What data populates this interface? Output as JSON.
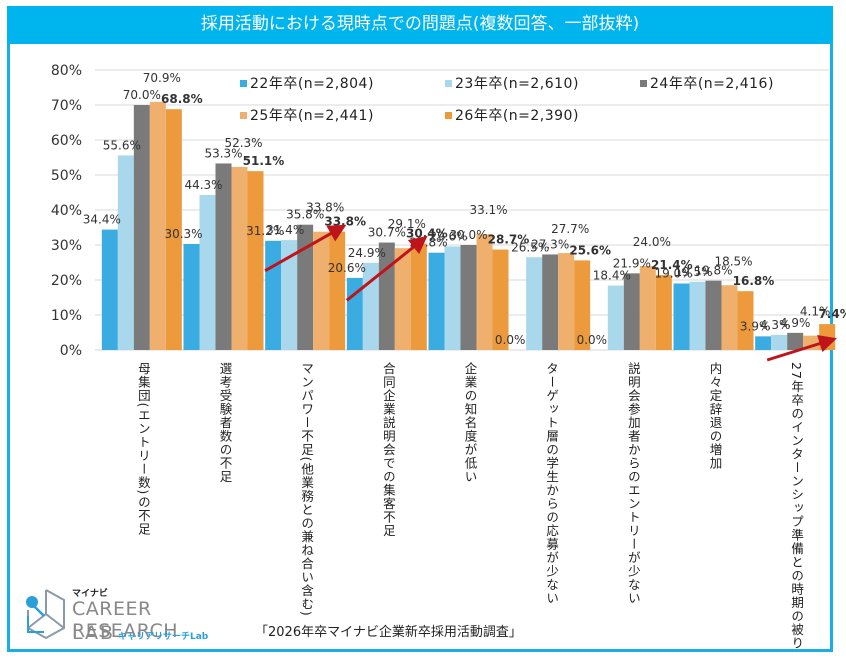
{
  "header": {
    "title": "採用活動における現時点での問題点(複数回答、一部抜粋)"
  },
  "colors": {
    "title_bg": "#00b4ee",
    "frame": "#1aaee6",
    "series": [
      "#3aace2",
      "#a9d8ec",
      "#7a7a7a",
      "#efb06e",
      "#ec9a3c"
    ],
    "arrow": "#c0141b"
  },
  "chart_data": {
    "type": "bar",
    "title": "採用活動における現時点での問題点(複数回答、一部抜粋)",
    "xlabel": "",
    "ylabel": "",
    "ylim": [
      0,
      80
    ],
    "yticks": [
      "0%",
      "10%",
      "20%",
      "30%",
      "40%",
      "50%",
      "60%",
      "70%",
      "80%"
    ],
    "grid": true,
    "legend_position": "top-right",
    "categories": [
      "母集団(エントリー数)の不足",
      "選考受験者数の不足",
      "マンパワー不足(他業務との兼ね合い含む)",
      "合同企業説明会での集客不足",
      "企業の知名度が低い",
      "ターゲット層の学生からの応募が少ない",
      "説明会参加者からのエントリーが少ない",
      "内々定辞退の増加",
      "27年卒のインターンシップ準備との時期の被り"
    ],
    "series": [
      {
        "name": "22年卒(n=2,804)",
        "values": [
          34.4,
          30.3,
          31.2,
          20.6,
          27.8,
          0.0,
          0.0,
          19.0,
          3.9
        ]
      },
      {
        "name": "23年卒(n=2,610)",
        "values": [
          55.6,
          44.3,
          31.4,
          24.9,
          29.6,
          26.5,
          18.4,
          19.5,
          4.3
        ]
      },
      {
        "name": "24年卒(n=2,416)",
        "values": [
          70.0,
          53.3,
          35.8,
          30.7,
          30.0,
          27.3,
          21.9,
          19.8,
          4.9
        ]
      },
      {
        "name": "25年卒(n=2,441)",
        "values": [
          70.9,
          52.3,
          33.8,
          29.1,
          33.1,
          27.7,
          24.0,
          18.5,
          4.1
        ]
      },
      {
        "name": "26年卒(n=2,390)",
        "values": [
          68.8,
          51.1,
          33.8,
          30.4,
          28.7,
          25.6,
          21.4,
          16.8,
          7.4
        ]
      }
    ],
    "data_labels": [
      [
        "34.4%",
        "30.3%",
        "31.2%",
        "20.6%",
        "27.8%",
        "0.0%",
        "0.0%",
        "19.0%",
        "3.9%"
      ],
      [
        "55.6%",
        "44.3%",
        "31.4%",
        "24.9%",
        "29.6%",
        "26.5%",
        "18.4%",
        "19.5%",
        "4.3%"
      ],
      [
        "70.0%",
        "53.3%",
        "35.8%",
        "30.7%",
        "30.0%",
        "27.3%",
        "21.9%",
        "19.8%",
        "4.9%"
      ],
      [
        "70.9%",
        "52.3%",
        "33.8%",
        "29.1%",
        "33.1%",
        "27.7%",
        "24.0%",
        "18.5%",
        "4.1%"
      ],
      [
        "68.8%",
        "51.1%",
        "33.8%",
        "30.4%",
        "28.7%",
        "25.6%",
        "21.4%",
        "16.8%",
        "7.4%"
      ]
    ],
    "annotations": [
      {
        "type": "trend-arrow",
        "category": "マンパワー不足(他業務との兼ね合い含む)"
      },
      {
        "type": "trend-arrow",
        "category": "合同企業説明会での集客不足"
      },
      {
        "type": "trend-arrow",
        "category": "27年卒のインターンシップ準備との時期の被り"
      }
    ]
  },
  "footer": {
    "source": "「2026年卒マイナビ企業新卒採用活動調査」",
    "logo_small": "マイナビ",
    "logo_main": "CAREER RESEARCH",
    "logo_lab": "LAB",
    "logo_kana": "キャリアリサーチLab"
  }
}
